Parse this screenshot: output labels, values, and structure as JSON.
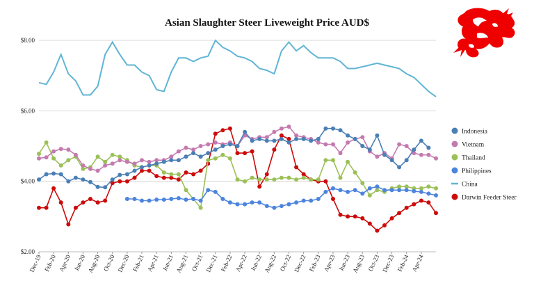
{
  "chart_data": {
    "type": "line",
    "title": "Asian Slaughter Steer Liveweight Price AUD$",
    "xlabel": "",
    "ylabel": "",
    "ylim": [
      2,
      8
    ],
    "yticks": [
      "$2.00",
      "$4.00",
      "$6.00",
      "$8.00"
    ],
    "ytick_values": [
      2,
      4,
      6,
      8
    ],
    "grid": true,
    "legend_position": "right",
    "x": [
      "Dec-19",
      "Jan-20",
      "Feb-20",
      "Mar-20",
      "Apr-20",
      "May-20",
      "Jun-20",
      "Jul-20",
      "Aug-20",
      "Sep-20",
      "Oct-20",
      "Nov-20",
      "Dec-20",
      "Jan-21",
      "Feb-21",
      "Mar-21",
      "Apr-21",
      "May-21",
      "Jun-21",
      "Jul-21",
      "Aug-21",
      "Sep-21",
      "Oct-21",
      "Nov-21",
      "Dec-21",
      "Jan-22",
      "Feb-22",
      "Mar-22",
      "Apr-22",
      "May-22",
      "Jun-22",
      "Jul-22",
      "Aug-22",
      "Sep-22",
      "Oct-22",
      "Nov-22",
      "Dec-22",
      "Jan-23",
      "Feb-23",
      "Mar-23",
      "Apr-23",
      "May-23",
      "Jun-23",
      "Jul-23",
      "Aug-23",
      "Sep-23",
      "Oct-23",
      "Nov-23",
      "Dec-23",
      "Jan-24",
      "Feb-24",
      "Mar-24",
      "Apr-24",
      "May-24",
      "Jun-24"
    ],
    "x_tick_labels": [
      "Dec-19",
      "Feb-20",
      "Apr-20",
      "Jun-20",
      "Aug-20",
      "Oct-20",
      "Dec-20",
      "Feb-21",
      "Apr-21",
      "Jun-21",
      "Aug-21",
      "Oct-21",
      "Dec-21",
      "Feb-22",
      "Apr-22",
      "Jun-22",
      "Aug-22",
      "Oct-22",
      "Dec-22",
      "Feb-23",
      "Apr-23",
      "Jun-23",
      "Aug-23",
      "Oct-23",
      "Dec-23",
      "Feb-24",
      "Apr-24"
    ],
    "series": [
      {
        "name": "Indonesia",
        "color": "#4a7fb5",
        "marker": true,
        "values": [
          4.05,
          4.2,
          4.22,
          4.2,
          4.0,
          4.1,
          4.05,
          3.98,
          3.84,
          3.83,
          4.05,
          4.18,
          4.2,
          4.3,
          4.4,
          4.45,
          4.5,
          4.55,
          4.6,
          4.6,
          4.7,
          4.8,
          4.7,
          4.8,
          4.9,
          5.0,
          5.05,
          5.0,
          5.4,
          5.15,
          5.2,
          5.15,
          5.15,
          5.2,
          5.1,
          5.2,
          5.2,
          5.15,
          5.2,
          5.5,
          5.5,
          5.45,
          5.3,
          5.2,
          5.0,
          4.9,
          5.3,
          4.75,
          4.6,
          4.4,
          4.6,
          4.9,
          5.15,
          4.95,
          null
        ]
      },
      {
        "name": "Vietnam",
        "color": "#c47ab0",
        "marker": true,
        "values": [
          4.65,
          4.68,
          4.85,
          4.92,
          4.9,
          4.75,
          4.45,
          4.35,
          4.3,
          4.45,
          4.5,
          4.6,
          4.55,
          4.5,
          4.6,
          4.55,
          4.6,
          4.6,
          4.7,
          4.85,
          4.95,
          4.9,
          5.0,
          5.05,
          5.1,
          5.05,
          5.1,
          5.0,
          5.3,
          5.2,
          5.25,
          5.25,
          5.4,
          5.5,
          5.55,
          5.3,
          5.25,
          5.2,
          5.1,
          5.05,
          5.05,
          4.8,
          5.1,
          5.2,
          5.25,
          4.85,
          4.7,
          4.8,
          4.65,
          5.05,
          5.0,
          4.8,
          4.75,
          4.75,
          4.65
        ]
      },
      {
        "name": "Thailand",
        "color": "#9bc057",
        "marker": true,
        "values": [
          4.78,
          5.1,
          4.65,
          4.45,
          4.6,
          4.7,
          4.35,
          4.4,
          4.7,
          4.55,
          4.75,
          4.7,
          4.6,
          4.45,
          4.4,
          4.45,
          4.45,
          4.25,
          4.2,
          4.2,
          3.75,
          3.5,
          3.25,
          4.6,
          4.65,
          4.75,
          4.65,
          4.05,
          4.0,
          4.1,
          4.05,
          4.05,
          4.05,
          4.1,
          4.1,
          4.05,
          4.1,
          4.05,
          4.05,
          4.6,
          4.6,
          4.1,
          4.55,
          4.25,
          3.95,
          3.6,
          3.75,
          3.7,
          3.8,
          3.85,
          3.85,
          3.8,
          3.8,
          3.85,
          3.8
        ]
      },
      {
        "name": "Philippines",
        "color": "#4c84de",
        "marker": true,
        "values": [
          null,
          null,
          null,
          null,
          null,
          null,
          null,
          null,
          null,
          null,
          null,
          null,
          3.5,
          3.5,
          3.45,
          3.45,
          3.48,
          3.48,
          3.5,
          3.52,
          3.48,
          3.5,
          3.45,
          3.75,
          3.7,
          3.5,
          3.4,
          3.35,
          3.35,
          3.4,
          3.4,
          3.3,
          3.25,
          3.3,
          3.35,
          3.4,
          3.45,
          3.45,
          3.5,
          3.7,
          3.8,
          3.75,
          3.7,
          3.75,
          3.65,
          3.8,
          3.85,
          3.75,
          3.75,
          3.75,
          3.75,
          3.72,
          3.7,
          3.65,
          3.6
        ]
      },
      {
        "name": "China",
        "color": "#5fb5d4",
        "marker": false,
        "values": [
          6.8,
          6.75,
          7.1,
          7.6,
          7.05,
          6.85,
          6.45,
          6.45,
          6.7,
          7.6,
          7.95,
          7.6,
          7.3,
          7.3,
          7.1,
          7.0,
          6.6,
          6.55,
          7.1,
          7.5,
          7.5,
          7.4,
          7.5,
          7.55,
          8.0,
          7.8,
          7.7,
          7.55,
          7.5,
          7.4,
          7.2,
          7.15,
          7.05,
          7.7,
          7.95,
          7.7,
          7.85,
          7.65,
          7.5,
          7.5,
          7.5,
          7.4,
          7.2,
          7.2,
          7.25,
          7.3,
          7.35,
          7.3,
          7.25,
          7.2,
          7.05,
          6.95,
          6.75,
          6.55,
          6.4
        ]
      },
      {
        "name": "Darwin Feeder Steer",
        "color": "#cc0b0b",
        "marker": true,
        "values": [
          3.25,
          3.25,
          3.8,
          3.4,
          2.78,
          3.25,
          3.4,
          3.5,
          3.4,
          3.45,
          3.95,
          4.0,
          4.0,
          4.1,
          4.3,
          4.3,
          4.15,
          4.1,
          4.1,
          4.05,
          4.25,
          4.2,
          4.3,
          4.5,
          5.35,
          5.45,
          5.5,
          4.8,
          4.8,
          4.85,
          3.85,
          4.2,
          4.9,
          5.3,
          5.2,
          4.4,
          4.2,
          4.05,
          4.0,
          4.0,
          3.5,
          3.05,
          3.0,
          3.0,
          2.95,
          2.8,
          2.6,
          2.75,
          2.95,
          3.1,
          3.25,
          3.35,
          3.45,
          3.4,
          3.1
        ]
      }
    ],
    "logo": "red-dragon-icon"
  }
}
